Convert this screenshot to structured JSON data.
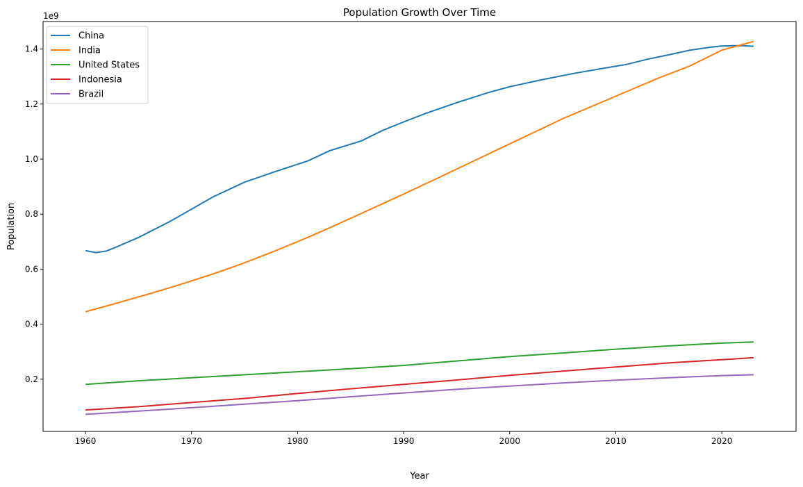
{
  "chart_data": {
    "type": "line",
    "title": "Population Growth Over Time",
    "xlabel": "Year",
    "ylabel": "Population",
    "y_offset_label": "1e9",
    "xlim": [
      1956,
      2027
    ],
    "ylim": [
      0.01,
      1.5
    ],
    "y_scale_note": "values in billions (1e9)",
    "x_ticks": [
      1960,
      1970,
      1980,
      1990,
      2000,
      2010,
      2020
    ],
    "y_ticks": [
      0.2,
      0.4,
      0.6,
      0.8,
      1.0,
      1.2,
      1.4
    ],
    "y_tick_labels": [
      "0.2",
      "0.4",
      "0.6",
      "0.8",
      "1.0",
      "1.2",
      "1.4"
    ],
    "grid": false,
    "legend_position": "top-left",
    "series": [
      {
        "name": "China",
        "color": "#1f77b4",
        "points": [
          [
            1960,
            0.667
          ],
          [
            1961,
            0.66
          ],
          [
            1962,
            0.666
          ],
          [
            1963,
            0.682
          ],
          [
            1965,
            0.715
          ],
          [
            1968,
            0.774
          ],
          [
            1970,
            0.818
          ],
          [
            1972,
            0.862
          ],
          [
            1975,
            0.916
          ],
          [
            1978,
            0.956
          ],
          [
            1981,
            0.994
          ],
          [
            1983,
            1.03
          ],
          [
            1986,
            1.066
          ],
          [
            1988,
            1.104
          ],
          [
            1990,
            1.135
          ],
          [
            1992,
            1.165
          ],
          [
            1995,
            1.205
          ],
          [
            1998,
            1.242
          ],
          [
            2000,
            1.263
          ],
          [
            2003,
            1.288
          ],
          [
            2006,
            1.311
          ],
          [
            2009,
            1.331
          ],
          [
            2011,
            1.344
          ],
          [
            2013,
            1.363
          ],
          [
            2015,
            1.379
          ],
          [
            2017,
            1.396
          ],
          [
            2019,
            1.407
          ],
          [
            2020,
            1.411
          ],
          [
            2021,
            1.412
          ],
          [
            2022,
            1.412
          ],
          [
            2023,
            1.41
          ]
        ]
      },
      {
        "name": "India",
        "color": "#ff7f0e",
        "points": [
          [
            1960,
            0.445
          ],
          [
            1963,
            0.477
          ],
          [
            1966,
            0.51
          ],
          [
            1969,
            0.545
          ],
          [
            1972,
            0.582
          ],
          [
            1975,
            0.623
          ],
          [
            1978,
            0.668
          ],
          [
            1981,
            0.716
          ],
          [
            1984,
            0.767
          ],
          [
            1987,
            0.82
          ],
          [
            1990,
            0.873
          ],
          [
            1993,
            0.927
          ],
          [
            1996,
            0.982
          ],
          [
            1999,
            1.037
          ],
          [
            2002,
            1.092
          ],
          [
            2005,
            1.147
          ],
          [
            2008,
            1.196
          ],
          [
            2011,
            1.245
          ],
          [
            2014,
            1.294
          ],
          [
            2017,
            1.339
          ],
          [
            2020,
            1.396
          ],
          [
            2022,
            1.417
          ],
          [
            2023,
            1.428
          ]
        ]
      },
      {
        "name": "United States",
        "color": "#2ca02c",
        "points": [
          [
            1960,
            0.181
          ],
          [
            1965,
            0.194
          ],
          [
            1970,
            0.205
          ],
          [
            1975,
            0.216
          ],
          [
            1980,
            0.227
          ],
          [
            1985,
            0.238
          ],
          [
            1990,
            0.25
          ],
          [
            1995,
            0.266
          ],
          [
            2000,
            0.282
          ],
          [
            2005,
            0.295
          ],
          [
            2010,
            0.309
          ],
          [
            2015,
            0.321
          ],
          [
            2020,
            0.331
          ],
          [
            2023,
            0.335
          ]
        ]
      },
      {
        "name": "Indonesia",
        "color": "#d62728",
        "points": [
          [
            1960,
            0.088
          ],
          [
            1965,
            0.1
          ],
          [
            1970,
            0.115
          ],
          [
            1975,
            0.13
          ],
          [
            1980,
            0.148
          ],
          [
            1985,
            0.165
          ],
          [
            1990,
            0.181
          ],
          [
            1995,
            0.197
          ],
          [
            2000,
            0.214
          ],
          [
            2005,
            0.229
          ],
          [
            2010,
            0.244
          ],
          [
            2015,
            0.259
          ],
          [
            2020,
            0.271
          ],
          [
            2023,
            0.278
          ]
        ]
      },
      {
        "name": "Brazil",
        "color": "#9467bd",
        "points": [
          [
            1960,
            0.072
          ],
          [
            1965,
            0.084
          ],
          [
            1970,
            0.096
          ],
          [
            1975,
            0.109
          ],
          [
            1980,
            0.122
          ],
          [
            1985,
            0.136
          ],
          [
            1990,
            0.15
          ],
          [
            1995,
            0.163
          ],
          [
            2000,
            0.175
          ],
          [
            2005,
            0.186
          ],
          [
            2010,
            0.196
          ],
          [
            2015,
            0.205
          ],
          [
            2020,
            0.213
          ],
          [
            2023,
            0.216
          ]
        ]
      }
    ]
  }
}
